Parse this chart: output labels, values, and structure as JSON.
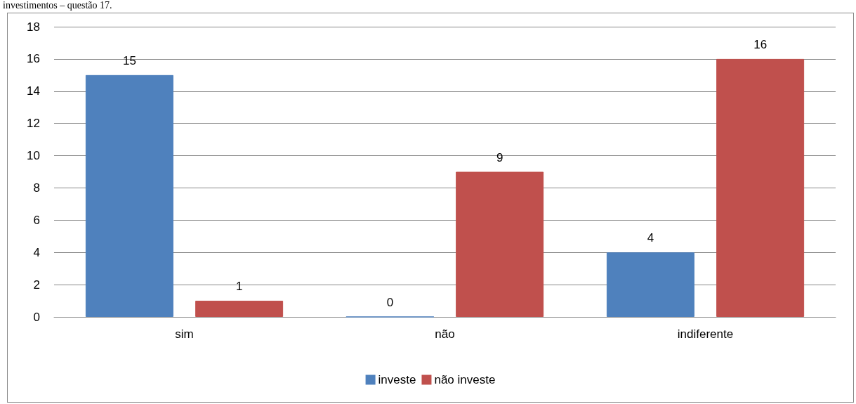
{
  "chart_data": {
    "type": "bar",
    "title": "investimentos – questão 17.",
    "categories": [
      "sim",
      "não",
      "indiferente"
    ],
    "series": [
      {
        "name": "investe",
        "color": "#4f81bd",
        "values": [
          15,
          0,
          4
        ]
      },
      {
        "name": "não investe",
        "color": "#c0504d",
        "values": [
          1,
          9,
          16
        ]
      }
    ],
    "ylim": [
      0,
      18
    ],
    "yticks": [
      0,
      2,
      4,
      6,
      8,
      10,
      12,
      14,
      16,
      18
    ],
    "grid": "y",
    "legend": "bottom",
    "data_labels": true
  }
}
